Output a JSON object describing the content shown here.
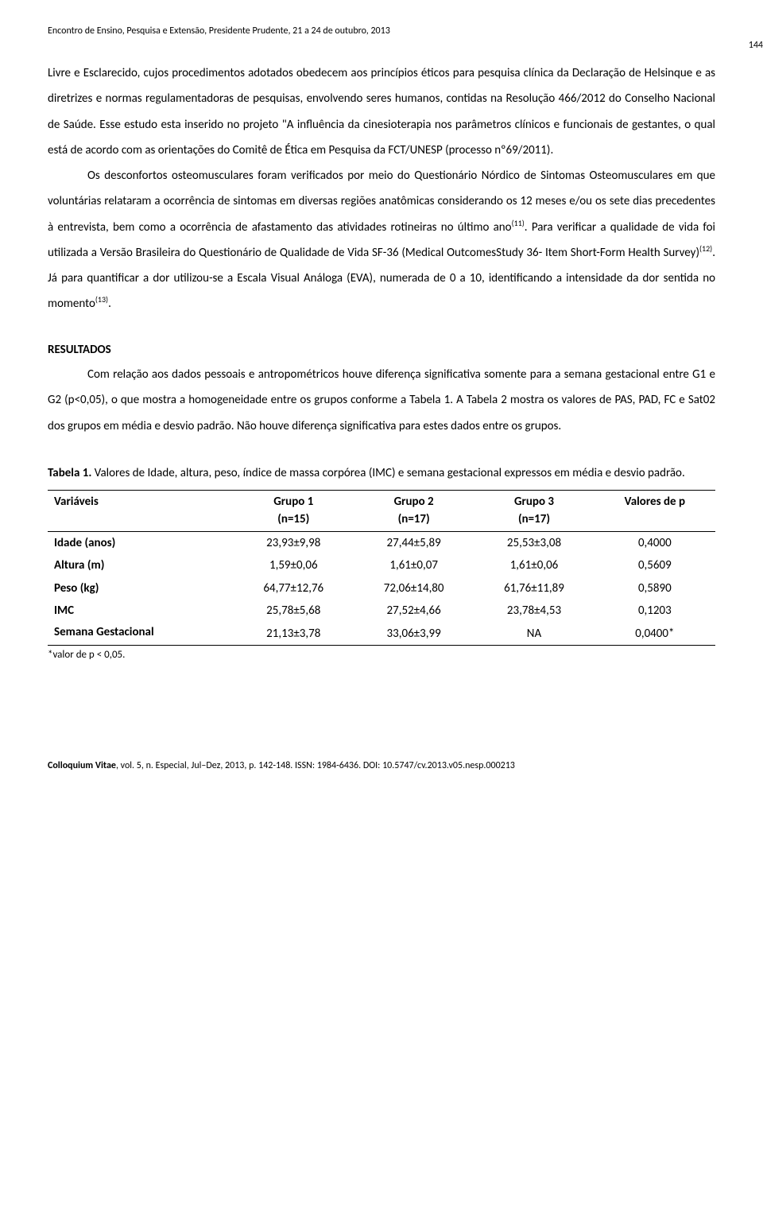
{
  "header": {
    "conference": "Encontro de Ensino, Pesquisa e Extensão, Presidente Prudente, 21 a 24 de outubro, 2013",
    "page_number": "144"
  },
  "body": {
    "para1_part1": "Livre e Esclarecido, cujos procedimentos adotados obedecem aos princípios éticos para pesquisa clínica da Declaração de Helsinque e as diretrizes e normas regulamentadoras de pesquisas, envolvendo seres humanos, contidas na Resolução 466/2012 do Conselho Nacional de Saúde. Esse estudo esta inserido no projeto \"A influência da cinesioterapia nos parâmetros clínicos e funcionais de gestantes, o qual está de acordo com as orientações do Comitê de Ética em Pesquisa da FCT/UNESP (processo nº69/2011).",
    "para2_part1": "Os desconfortos osteomusculares foram verificados por meio do Questionário Nórdico de Sintomas Osteomusculares em que voluntárias relataram a ocorrência de sintomas em diversas regiões anatômicas considerando os 12 meses e/ou os sete dias precedentes à entrevista, bem como a ocorrência de afastamento das atividades rotineiras no último ano",
    "para2_sup1": "(11)",
    "para2_part2": ". Para verificar a qualidade de vida foi utilizada a Versão Brasileira do Questionário de Qualidade de Vida SF-36 (Medical OutcomesStudy 36- Item Short-Form Health Survey)",
    "para2_sup2": "(12)",
    "para2_part3": ". Já para quantificar a dor utilizou-se a Escala Visual Análoga (EVA), numerada de 0 a 10, identificando a intensidade da dor sentida no momento",
    "para2_sup3": "(13)",
    "para2_part4": "."
  },
  "results": {
    "heading": "RESULTADOS",
    "para1": "Com relação aos dados pessoais e antropométricos houve diferença significativa somente para a semana gestacional entre G1 e G2 (p<0,05), o que mostra a homogeneidade entre os grupos conforme a Tabela 1. A Tabela 2 mostra os valores de PAS, PAD, FC e Sat02 dos grupos em média e desvio padrão. Não houve diferença significativa para estes dados entre os grupos."
  },
  "table1": {
    "caption_bold": "Tabela 1.",
    "caption_rest": " Valores de Idade, altura, peso, índice de massa corpórea (IMC) e semana gestacional expressos em média e desvio padrão.",
    "headers": {
      "col1": "Variáveis",
      "col2": "Grupo 1",
      "col2_n": "(n=15)",
      "col3": "Grupo 2",
      "col3_n": "(n=17)",
      "col4": "Grupo 3",
      "col4_n": "(n=17)",
      "col5": "Valores de p"
    },
    "rows": [
      {
        "var": "Idade (anos)",
        "g1": "23,93±9,98",
        "g2": "27,44±5,89",
        "g3": "25,53±3,08",
        "p": "0,4000"
      },
      {
        "var": "Altura (m)",
        "g1": "1,59±0,06",
        "g2": "1,61±0,07",
        "g3": "1,61±0,06",
        "p": "0,5609"
      },
      {
        "var": "Peso (kg)",
        "g1": "64,77±12,76",
        "g2": "72,06±14,80",
        "g3": "61,76±11,89",
        "p": "0,5890"
      },
      {
        "var": "IMC",
        "g1": "25,78±5,68",
        "g2": "27,52±4,66",
        "g3": "23,78±4,53",
        "p": "0,1203"
      },
      {
        "var": "Semana Gestacional",
        "g1": "21,13±3,78",
        "g2": "33,06±3,99",
        "g3": "NA",
        "p": "0,0400*"
      }
    ],
    "note": "*valor de p < 0,05."
  },
  "footer": {
    "journal": "Colloquium Vitae",
    "rest": ", vol. 5, n. Especial, Jul–Dez, 2013, p. 142-148. ISSN: 1984-6436. DOI: 10.5747/cv.2013.v05.nesp.000213"
  },
  "styling": {
    "body_font_size": 15,
    "body_line_height": 2.15,
    "header_font_size": 12,
    "footer_font_size": 12,
    "background_color": "#ffffff",
    "text_color": "#000000",
    "table_border_color": "#000000"
  }
}
